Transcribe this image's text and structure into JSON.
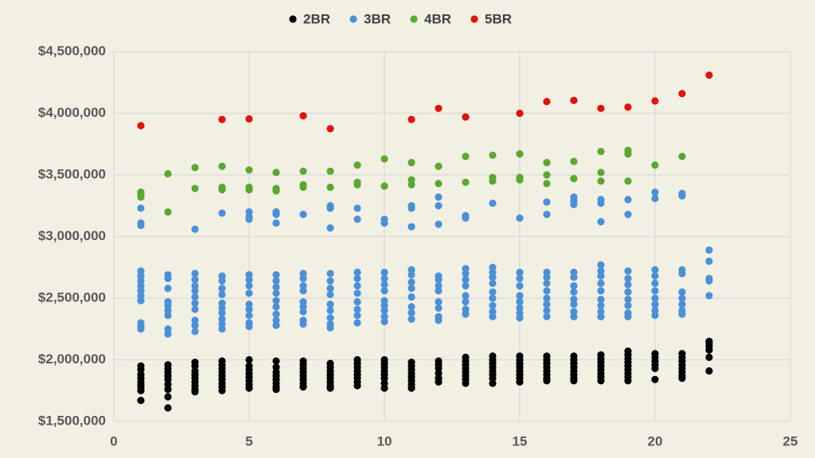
{
  "chart_data": {
    "type": "scatter",
    "xlim": [
      0,
      25
    ],
    "xticks": [
      0,
      5,
      10,
      15,
      20,
      25
    ],
    "ylim": [
      1500000,
      4500000
    ],
    "yticks": [
      {
        "value": 1500000,
        "label": "$1,500,000"
      },
      {
        "value": 2000000,
        "label": "$2,000,000"
      },
      {
        "value": 2500000,
        "label": "$2,500,000"
      },
      {
        "value": 3000000,
        "label": "$3,000,000"
      },
      {
        "value": 3500000,
        "label": "$3,500,000"
      },
      {
        "value": 4000000,
        "label": "$4,000,000"
      },
      {
        "value": 4500000,
        "label": "$4,500,000"
      }
    ],
    "grid": true,
    "legend": "top",
    "series": [
      {
        "name": "2BR",
        "color": "#000000",
        "x": [
          1,
          1,
          1,
          1,
          1,
          1,
          1,
          1,
          1,
          2,
          2,
          2,
          2,
          2,
          2,
          2,
          2,
          2,
          3,
          3,
          3,
          3,
          3,
          3,
          3,
          3,
          3,
          4,
          4,
          4,
          4,
          4,
          4,
          4,
          4,
          4,
          5,
          5,
          5,
          5,
          5,
          5,
          5,
          5,
          6,
          6,
          6,
          6,
          6,
          6,
          6,
          6,
          7,
          7,
          7,
          7,
          7,
          7,
          7,
          7,
          8,
          8,
          8,
          8,
          8,
          8,
          8,
          8,
          9,
          9,
          9,
          9,
          9,
          9,
          9,
          9,
          10,
          10,
          10,
          10,
          10,
          10,
          10,
          10,
          11,
          11,
          11,
          11,
          11,
          11,
          11,
          11,
          12,
          12,
          12,
          12,
          12,
          12,
          13,
          13,
          13,
          13,
          13,
          13,
          13,
          13,
          14,
          14,
          14,
          14,
          14,
          14,
          14,
          14,
          15,
          15,
          15,
          15,
          15,
          15,
          15,
          15,
          16,
          16,
          16,
          16,
          16,
          16,
          16,
          16,
          17,
          17,
          17,
          17,
          17,
          17,
          17,
          17,
          18,
          18,
          18,
          18,
          18,
          18,
          18,
          18,
          19,
          19,
          19,
          19,
          19,
          19,
          19,
          19,
          19,
          20,
          20,
          20,
          20,
          20,
          20,
          21,
          21,
          21,
          21,
          21,
          21,
          21,
          21,
          22,
          22,
          22,
          22,
          22,
          22
        ],
        "values": [
          1950000,
          1920000,
          1880000,
          1850000,
          1820000,
          1800000,
          1780000,
          1750000,
          1670000,
          1960000,
          1930000,
          1900000,
          1870000,
          1840000,
          1800000,
          1760000,
          1700000,
          1610000,
          1980000,
          1950000,
          1910000,
          1880000,
          1850000,
          1820000,
          1790000,
          1760000,
          1740000,
          1990000,
          1960000,
          1930000,
          1900000,
          1870000,
          1840000,
          1810000,
          1780000,
          1750000,
          2000000,
          1950000,
          1920000,
          1890000,
          1860000,
          1830000,
          1800000,
          1770000,
          1990000,
          1940000,
          1900000,
          1870000,
          1840000,
          1810000,
          1780000,
          1760000,
          1990000,
          1960000,
          1930000,
          1900000,
          1870000,
          1840000,
          1810000,
          1780000,
          1970000,
          1940000,
          1910000,
          1880000,
          1850000,
          1820000,
          1790000,
          1770000,
          2000000,
          1970000,
          1940000,
          1910000,
          1880000,
          1850000,
          1820000,
          1790000,
          2000000,
          1970000,
          1940000,
          1910000,
          1880000,
          1850000,
          1810000,
          1770000,
          1980000,
          1950000,
          1920000,
          1890000,
          1860000,
          1830000,
          1800000,
          1770000,
          1990000,
          1960000,
          1930000,
          1890000,
          1850000,
          1820000,
          2020000,
          1990000,
          1960000,
          1930000,
          1900000,
          1870000,
          1840000,
          1810000,
          2030000,
          2000000,
          1970000,
          1940000,
          1910000,
          1880000,
          1850000,
          1810000,
          2030000,
          2000000,
          1970000,
          1940000,
          1910000,
          1880000,
          1850000,
          1820000,
          2030000,
          2000000,
          1970000,
          1940000,
          1910000,
          1880000,
          1850000,
          1830000,
          2030000,
          2000000,
          1970000,
          1940000,
          1910000,
          1880000,
          1850000,
          1830000,
          2040000,
          2010000,
          1980000,
          1950000,
          1920000,
          1890000,
          1860000,
          1830000,
          2070000,
          2040000,
          2010000,
          1980000,
          1950000,
          1920000,
          1890000,
          1860000,
          1830000,
          2050000,
          2020000,
          1990000,
          1960000,
          1930000,
          1840000,
          2050000,
          2020000,
          1990000,
          1960000,
          1930000,
          1900000,
          1870000,
          1850000,
          2150000,
          2130000,
          2110000,
          2080000,
          2020000,
          1910000
        ]
      },
      {
        "name": "3BR",
        "color": "#4a90d9",
        "x": [
          1,
          1,
          1,
          1,
          1,
          1,
          1,
          1,
          1,
          1,
          1,
          1,
          1,
          2,
          2,
          2,
          2,
          2,
          2,
          2,
          2,
          2,
          3,
          3,
          3,
          3,
          3,
          3,
          3,
          3,
          3,
          3,
          3,
          4,
          4,
          4,
          4,
          4,
          4,
          4,
          4,
          4,
          4,
          4,
          5,
          5,
          5,
          5,
          5,
          5,
          5,
          5,
          5,
          5,
          5,
          5,
          6,
          6,
          6,
          6,
          6,
          6,
          6,
          6,
          6,
          6,
          6,
          6,
          7,
          7,
          7,
          7,
          7,
          7,
          7,
          7,
          7,
          7,
          8,
          8,
          8,
          8,
          8,
          8,
          8,
          8,
          8,
          8,
          8,
          8,
          9,
          9,
          9,
          9,
          9,
          9,
          9,
          9,
          9,
          9,
          10,
          10,
          10,
          10,
          10,
          10,
          10,
          10,
          10,
          10,
          10,
          11,
          11,
          11,
          11,
          11,
          11,
          11,
          11,
          11,
          11,
          11,
          12,
          12,
          12,
          12,
          12,
          12,
          12,
          12,
          12,
          12,
          12,
          13,
          13,
          13,
          13,
          13,
          13,
          13,
          13,
          13,
          13,
          14,
          14,
          14,
          14,
          14,
          14,
          14,
          14,
          14,
          14,
          15,
          15,
          15,
          15,
          15,
          15,
          15,
          15,
          15,
          16,
          16,
          16,
          16,
          16,
          16,
          16,
          16,
          16,
          16,
          17,
          17,
          17,
          17,
          17,
          17,
          17,
          17,
          17,
          17,
          17,
          18,
          18,
          18,
          18,
          18,
          18,
          18,
          18,
          18,
          18,
          18,
          18,
          19,
          19,
          19,
          19,
          19,
          19,
          19,
          19,
          19,
          19,
          20,
          20,
          20,
          20,
          20,
          20,
          20,
          20,
          20,
          20,
          21,
          21,
          21,
          21,
          21,
          21,
          21,
          21,
          21,
          22,
          22,
          22,
          22,
          22
        ],
        "values": [
          3230000,
          3110000,
          3090000,
          2720000,
          2680000,
          2640000,
          2600000,
          2560000,
          2520000,
          2480000,
          2300000,
          2270000,
          2250000,
          2690000,
          2660000,
          2580000,
          2470000,
          2440000,
          2400000,
          2360000,
          2250000,
          2210000,
          3060000,
          2700000,
          2650000,
          2600000,
          2560000,
          2510000,
          2460000,
          2410000,
          2320000,
          2280000,
          2230000,
          3190000,
          2680000,
          2640000,
          2580000,
          2530000,
          2460000,
          2420000,
          2380000,
          2330000,
          2290000,
          2250000,
          3200000,
          3160000,
          3140000,
          2690000,
          2650000,
          2600000,
          2540000,
          2450000,
          2410000,
          2360000,
          2300000,
          2270000,
          3200000,
          3180000,
          3110000,
          2690000,
          2640000,
          2590000,
          2540000,
          2480000,
          2430000,
          2370000,
          2320000,
          2280000,
          3180000,
          2700000,
          2660000,
          2600000,
          2560000,
          2470000,
          2430000,
          2390000,
          2320000,
          2290000,
          3250000,
          3230000,
          3070000,
          2700000,
          2640000,
          2580000,
          2530000,
          2450000,
          2400000,
          2340000,
          2290000,
          2260000,
          3230000,
          3140000,
          2710000,
          2660000,
          2600000,
          2540000,
          2470000,
          2410000,
          2360000,
          2300000,
          3140000,
          3110000,
          2710000,
          2660000,
          2610000,
          2560000,
          2480000,
          2440000,
          2400000,
          2350000,
          2310000,
          3250000,
          3230000,
          3080000,
          2730000,
          2690000,
          2630000,
          2580000,
          2510000,
          2430000,
          2380000,
          2330000,
          3320000,
          3250000,
          3100000,
          2680000,
          2650000,
          2600000,
          2560000,
          2470000,
          2420000,
          2350000,
          2320000,
          3170000,
          3150000,
          2740000,
          2700000,
          2650000,
          2600000,
          2520000,
          2470000,
          2410000,
          2370000,
          3270000,
          2750000,
          2710000,
          2670000,
          2620000,
          2550000,
          2500000,
          2440000,
          2390000,
          2350000,
          3150000,
          2710000,
          2660000,
          2600000,
          2520000,
          2470000,
          2420000,
          2380000,
          2340000,
          3280000,
          3180000,
          2710000,
          2670000,
          2620000,
          2560000,
          2500000,
          2450000,
          2400000,
          2350000,
          3320000,
          3290000,
          3260000,
          2710000,
          2670000,
          2600000,
          2550000,
          2490000,
          2450000,
          2390000,
          2350000,
          3300000,
          3270000,
          3120000,
          2770000,
          2720000,
          2680000,
          2620000,
          2560000,
          2490000,
          2440000,
          2390000,
          2350000,
          3300000,
          3180000,
          2720000,
          2660000,
          2610000,
          2550000,
          2490000,
          2440000,
          2380000,
          2350000,
          3360000,
          3310000,
          2730000,
          2680000,
          2620000,
          2560000,
          2500000,
          2450000,
          2400000,
          2360000,
          3350000,
          3330000,
          2730000,
          2700000,
          2550000,
          2500000,
          2450000,
          2400000,
          2370000,
          2890000,
          2800000,
          2660000,
          2640000,
          2520000
        ]
      },
      {
        "name": "4BR",
        "color": "#5aa832",
        "x": [
          1,
          1,
          1,
          2,
          2,
          3,
          3,
          4,
          4,
          4,
          5,
          5,
          5,
          6,
          6,
          6,
          7,
          7,
          7,
          8,
          8,
          9,
          9,
          9,
          10,
          10,
          11,
          11,
          11,
          12,
          12,
          13,
          13,
          14,
          14,
          14,
          15,
          15,
          15,
          16,
          16,
          16,
          17,
          17,
          18,
          18,
          18,
          19,
          19,
          19,
          20,
          21
        ],
        "values": [
          3360000,
          3340000,
          3320000,
          3510000,
          3200000,
          3560000,
          3390000,
          3570000,
          3400000,
          3380000,
          3540000,
          3400000,
          3380000,
          3520000,
          3390000,
          3370000,
          3530000,
          3420000,
          3400000,
          3530000,
          3400000,
          3580000,
          3440000,
          3420000,
          3630000,
          3410000,
          3600000,
          3460000,
          3420000,
          3570000,
          3430000,
          3650000,
          3440000,
          3660000,
          3480000,
          3450000,
          3670000,
          3480000,
          3460000,
          3600000,
          3500000,
          3430000,
          3610000,
          3470000,
          3690000,
          3520000,
          3450000,
          3700000,
          3670000,
          3450000,
          3580000,
          3650000
        ]
      },
      {
        "name": "5BR",
        "color": "#e3120b",
        "x": [
          1,
          4,
          5,
          7,
          8,
          11,
          12,
          13,
          15,
          16,
          17,
          18,
          19,
          20,
          21,
          22
        ],
        "values": [
          3900000,
          3950000,
          3955000,
          3980000,
          3875000,
          3950000,
          4040000,
          3970000,
          4000000,
          4095000,
          4105000,
          4040000,
          4050000,
          4100000,
          4160000,
          4310000
        ]
      }
    ]
  }
}
